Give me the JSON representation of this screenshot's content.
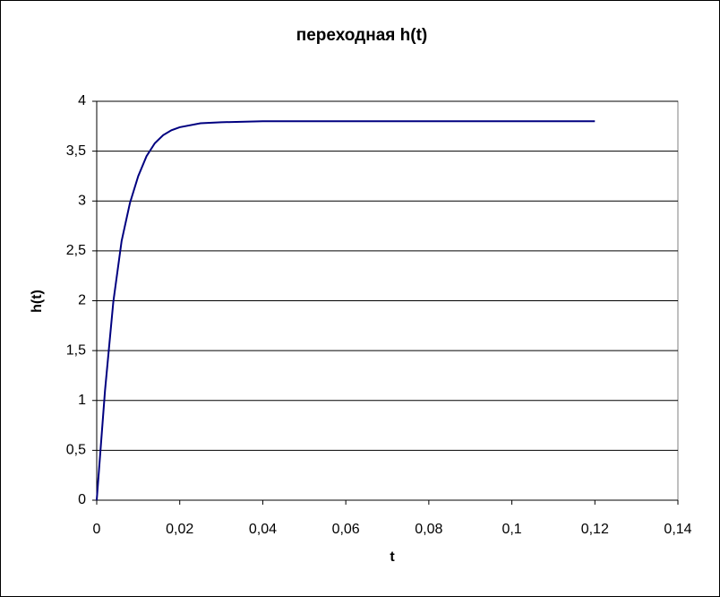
{
  "chart_data": {
    "type": "line",
    "title": "переходная h(t)",
    "x_label": "t",
    "y_label": "h(t)",
    "x": [
      0,
      0.002,
      0.004,
      0.006,
      0.008,
      0.01,
      0.012,
      0.014,
      0.016,
      0.018,
      0.02,
      0.025,
      0.03,
      0.04,
      0.05,
      0.06,
      0.08,
      0.1,
      0.12
    ],
    "series": [
      {
        "name": "h(t)",
        "color": "#000080",
        "values": [
          0,
          1.1,
          1.99,
          2.6,
          2.98,
          3.25,
          3.45,
          3.58,
          3.66,
          3.71,
          3.74,
          3.78,
          3.79,
          3.8,
          3.8,
          3.8,
          3.8,
          3.8,
          3.8
        ]
      }
    ],
    "xlim": [
      0,
      0.14
    ],
    "xticks": [
      0,
      {
        "value": 0.02,
        "label": "0,02"
      },
      {
        "value": 0.04,
        "label": "0,04"
      },
      {
        "value": 0.06,
        "label": "0,06"
      },
      {
        "value": 0.08,
        "label": "0,08"
      },
      {
        "value": 0.1,
        "label": "0,1"
      },
      {
        "value": 0.12,
        "label": "0,12"
      },
      {
        "value": 0.14,
        "label": "0,14"
      }
    ],
    "ylim": [
      0,
      4
    ],
    "yticks": [
      0,
      {
        "value": 0.5,
        "label": "0,5"
      },
      1,
      {
        "value": 1.5,
        "label": "1,5"
      },
      2,
      {
        "value": 2.5,
        "label": "2,5"
      },
      3,
      {
        "value": 3.5,
        "label": "3,5"
      },
      4
    ],
    "grid": true
  }
}
